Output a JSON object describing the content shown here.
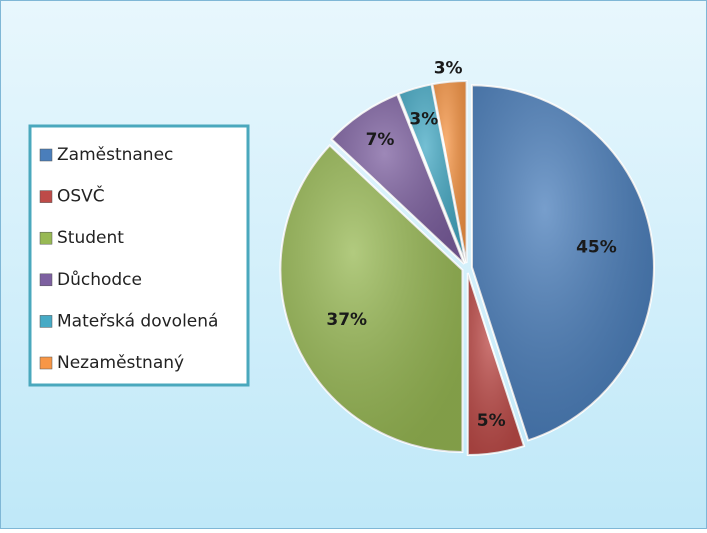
{
  "chart_data": {
    "type": "pie",
    "categories": [
      "Zaměstnanec",
      "OSVČ",
      "Student",
      "Důchodce",
      "Mateřská dovolená",
      "Nezaměstnaný"
    ],
    "values": [
      45,
      5,
      37,
      7,
      3,
      3
    ],
    "value_labels": [
      "45%",
      "5%",
      "37%",
      "7%",
      "3%",
      "3%"
    ],
    "colors": [
      "#4a7ebb",
      "#be4b48",
      "#98b954",
      "#7d60a0",
      "#46aac5",
      "#f79646"
    ],
    "legend": "left"
  }
}
